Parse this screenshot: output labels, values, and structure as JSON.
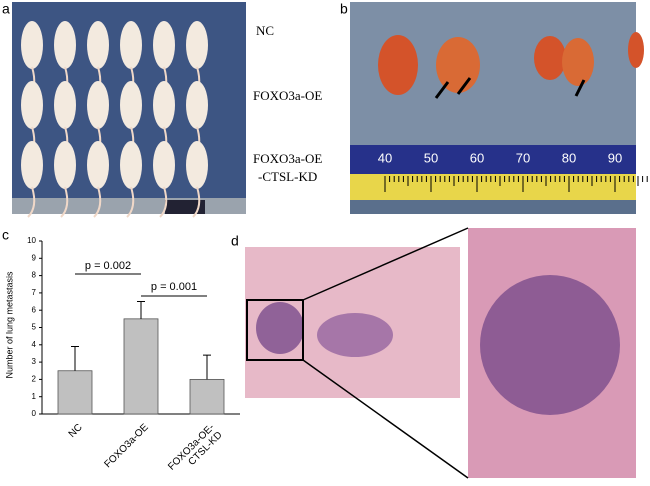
{
  "panels": {
    "a": "a",
    "b": "b",
    "c": "c",
    "d": "d"
  },
  "panel_a": {
    "groups": [
      {
        "lines": [
          "NC"
        ]
      },
      {
        "lines": [
          "FOXO3a-OE"
        ]
      },
      {
        "lines": [
          "FOXO3a-OE",
          "-CTSL-KD"
        ]
      }
    ]
  },
  "panel_b": {
    "ruler_numbers": [
      "40",
      "50",
      "60",
      "70",
      "80",
      "90"
    ]
  },
  "chart_data": {
    "type": "bar",
    "y_label": "Number of lung metastasis",
    "categories": [
      "NC",
      "FOXO3a-OE",
      "FOXO3a-OE-\nCTSL-KD"
    ],
    "values": [
      2.5,
      5.5,
      2.0
    ],
    "errors": [
      1.4,
      1.0,
      1.4
    ],
    "color": "#c0c0c0",
    "ylim": [
      0,
      10
    ],
    "yticks": [
      0,
      1,
      2,
      3,
      4,
      5,
      6,
      7,
      8,
      9,
      10
    ],
    "annotations": [
      "p = 0.002",
      "p = 0.001"
    ]
  }
}
